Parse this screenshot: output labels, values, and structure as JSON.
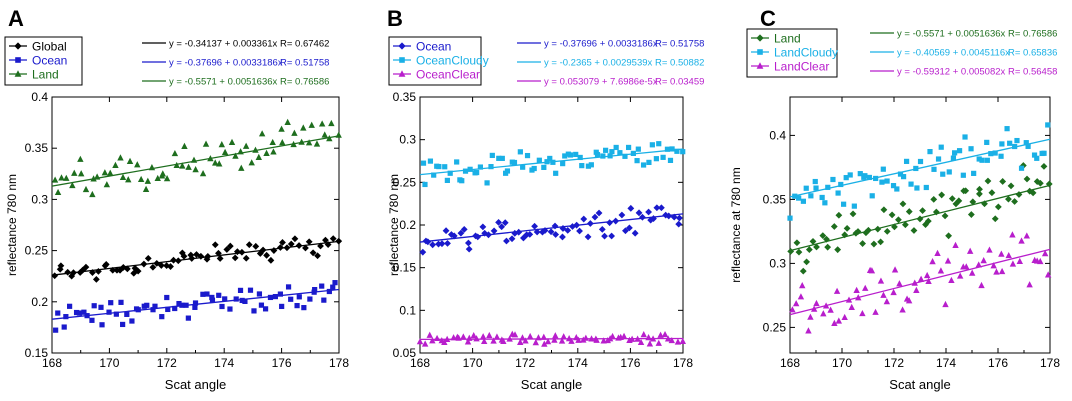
{
  "figure": {
    "x_label": "Scat angle"
  },
  "chart_data": [
    {
      "panel_label": "A",
      "type": "scatter",
      "xlabel": "Scat angle",
      "ylabel": "reflectance 780 nm",
      "xlim": [
        168,
        178
      ],
      "ylim": [
        0.15,
        0.4
      ],
      "xticks": [
        168,
        170,
        172,
        174,
        176,
        178
      ],
      "yticks": [
        0.15,
        0.2,
        0.25,
        0.3,
        0.35,
        0.4
      ],
      "ytick_labels": [
        "0.15",
        "0.2",
        "0.25",
        "0.3",
        "0.35",
        "0.4"
      ],
      "series": [
        {
          "name": "Global",
          "color": "#000000",
          "marker": "diamond",
          "fit": {
            "a": -0.34137,
            "b": 0.003361
          },
          "eq": "y = -0.34137 + 0.003361x",
          "r": "R= 0.67462",
          "base": 0.226,
          "end": 0.259,
          "spread": 0.012
        },
        {
          "name": "Ocean",
          "color": "#1a1acc",
          "marker": "square",
          "fit": {
            "a": -0.37696,
            "b": 0.0033186
          },
          "eq": "y = -0.37696 + 0.0033186x",
          "r": "R= 0.51758",
          "base": 0.183,
          "end": 0.212,
          "spread": 0.014
        },
        {
          "name": "Land",
          "color": "#1e6e1e",
          "marker": "triangle",
          "fit": {
            "a": -0.5571,
            "b": 0.0051636
          },
          "eq": "y = -0.5571 + 0.0051636x",
          "r": "R= 0.76586",
          "base": 0.313,
          "end": 0.362,
          "spread": 0.02
        }
      ]
    },
    {
      "panel_label": "B",
      "type": "scatter",
      "xlabel": "Scat angle",
      "ylabel": "reflectance 780 nm",
      "xlim": [
        168,
        178
      ],
      "ylim": [
        0.05,
        0.35
      ],
      "xticks": [
        168,
        170,
        172,
        174,
        176,
        178
      ],
      "yticks": [
        0.05,
        0.1,
        0.15,
        0.2,
        0.25,
        0.3,
        0.35
      ],
      "ytick_labels": [
        "0.05",
        "0.1",
        "0.15",
        "0.2",
        "0.25",
        "0.3",
        "0.35"
      ],
      "series": [
        {
          "name": "Ocean",
          "color": "#1a1acc",
          "marker": "diamond",
          "fit": {
            "a": -0.37696,
            "b": 0.0033186
          },
          "eq": "y = -0.37696 + 0.0033186x",
          "r": "R= 0.51758",
          "base": 0.18,
          "end": 0.213,
          "spread": 0.016
        },
        {
          "name": "OceanCloudy",
          "color": "#1ab0e6",
          "marker": "square",
          "fit": {
            "a": -0.2365,
            "b": 0.0029539
          },
          "eq": "y = -0.2365 + 0.0029539x",
          "r": "R= 0.50882",
          "base": 0.259,
          "end": 0.289,
          "spread": 0.016
        },
        {
          "name": "OceanClear",
          "color": "#b81ecc",
          "marker": "triangle",
          "fit": {
            "a": 0.053079,
            "b": 7.6986e-05
          },
          "eq": "y = 0.053079 + 7.6986e-5x",
          "r": "R= 0.03459",
          "base": 0.066,
          "end": 0.067,
          "spread": 0.006
        }
      ]
    },
    {
      "panel_label": "C",
      "type": "scatter",
      "xlabel": "Scat angle",
      "ylabel": "reflectance at 780 nm",
      "xlim": [
        168,
        178
      ],
      "ylim": [
        0.23,
        0.43
      ],
      "xticks": [
        168,
        170,
        172,
        174,
        176,
        178
      ],
      "yticks": [
        0.25,
        0.3,
        0.35,
        0.4
      ],
      "ytick_labels": [
        "0.25",
        "0.3",
        "0.35",
        "0.4"
      ],
      "series": [
        {
          "name": "Land",
          "color": "#1e6e1e",
          "marker": "diamond",
          "fit": {
            "a": -0.5571,
            "b": 0.0051636
          },
          "eq": "y = -0.5571 + 0.0051636x",
          "r": "R= 0.76586",
          "base": 0.31,
          "end": 0.361,
          "spread": 0.02
        },
        {
          "name": "LandCloudy",
          "color": "#1ab0e6",
          "marker": "square",
          "fit": {
            "a": -0.40569,
            "b": 0.0045116
          },
          "eq": "y = -0.40569 + 0.0045116x",
          "r": "R= 0.65836",
          "base": 0.352,
          "end": 0.397,
          "spread": 0.018
        },
        {
          "name": "LandClear",
          "color": "#b81ecc",
          "marker": "triangle",
          "fit": {
            "a": -0.59312,
            "b": 0.005082
          },
          "eq": "y = -0.59312 + 0.005082x",
          "r": "R= 0.56458",
          "base": 0.26,
          "end": 0.311,
          "spread": 0.022
        }
      ]
    }
  ]
}
